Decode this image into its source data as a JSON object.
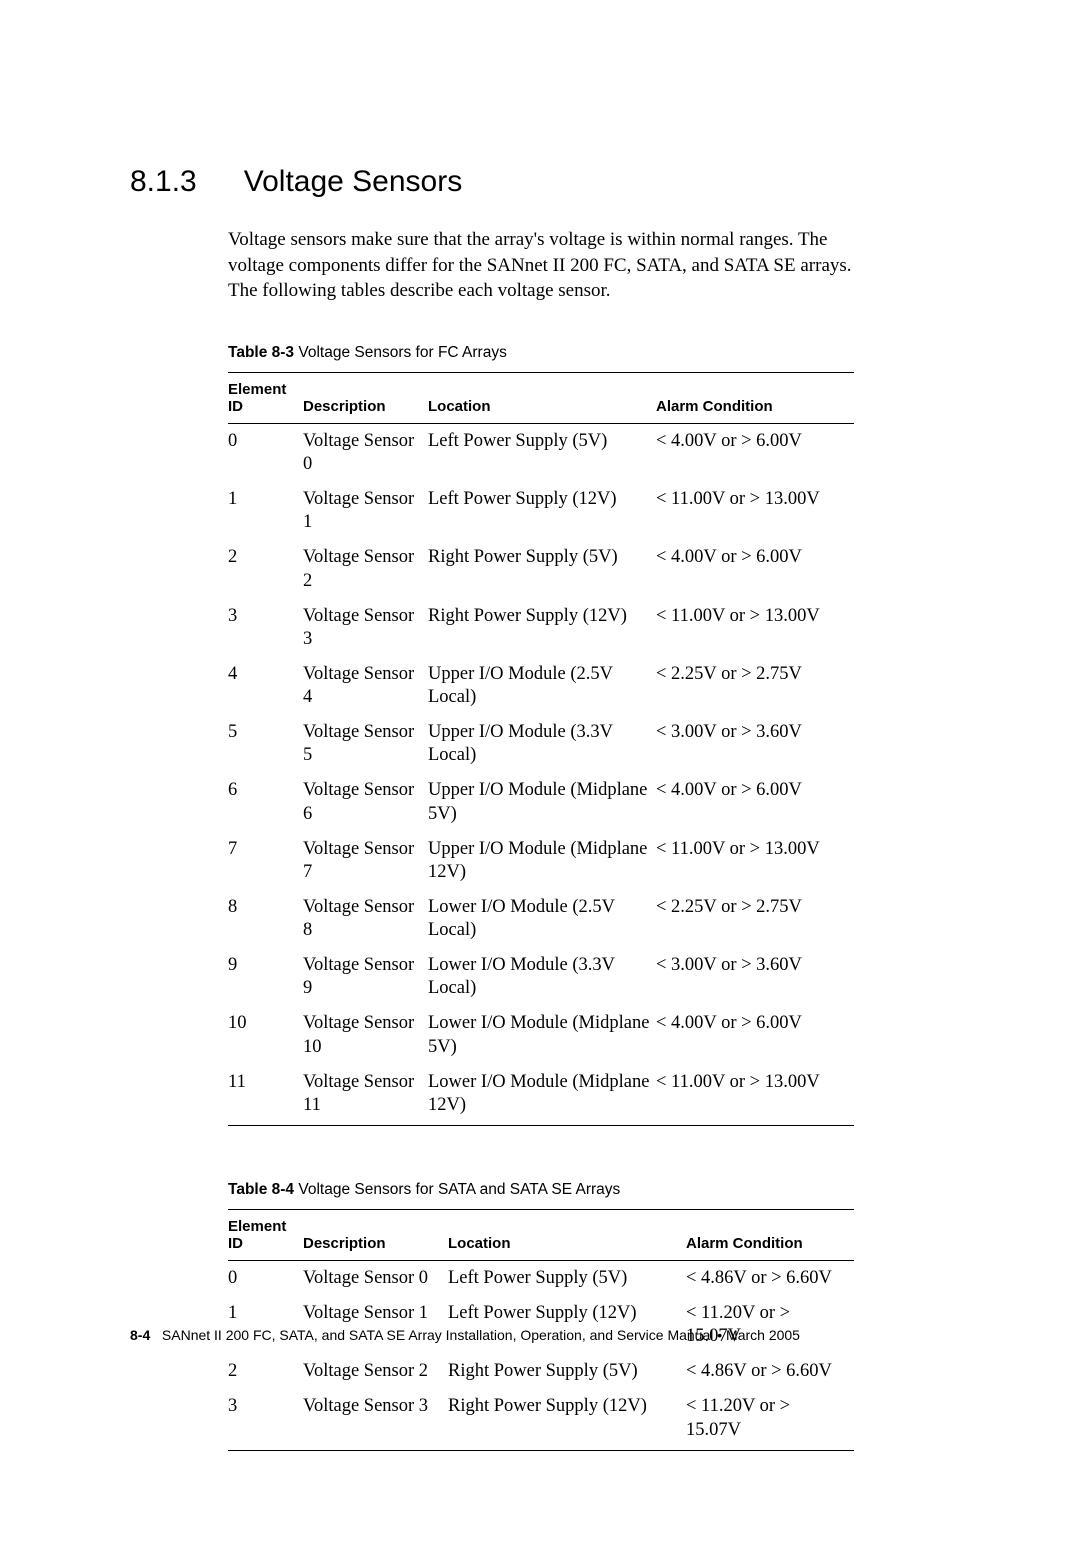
{
  "section": {
    "number": "8.1.3",
    "title": "Voltage Sensors"
  },
  "intro_text": "Voltage sensors make sure that the array's voltage is within normal ranges. The voltage components differ for the SANnet II 200 FC, SATA, and SATA SE arrays. The following tables describe each voltage sensor.",
  "table1": {
    "caption_label": "Table 8-3",
    "caption_text": "Voltage Sensors for FC Arrays",
    "headers": {
      "c0": "Element ID",
      "c1": "Description",
      "c2": "Location",
      "c3": "Alarm Condition"
    },
    "rows": [
      {
        "id": "0",
        "desc": "Voltage Sensor 0",
        "loc": "Left Power Supply (5V)",
        "alarm": "< 4.00V or > 6.00V"
      },
      {
        "id": "1",
        "desc": "Voltage Sensor 1",
        "loc": "Left Power Supply (12V)",
        "alarm": "< 11.00V or > 13.00V"
      },
      {
        "id": "2",
        "desc": "Voltage Sensor 2",
        "loc": "Right Power Supply (5V)",
        "alarm": "< 4.00V or > 6.00V"
      },
      {
        "id": "3",
        "desc": "Voltage Sensor 3",
        "loc": "Right Power Supply (12V)",
        "alarm": "< 11.00V or > 13.00V"
      },
      {
        "id": "4",
        "desc": "Voltage Sensor 4",
        "loc": "Upper I/O Module (2.5V Local)",
        "alarm": "< 2.25V or > 2.75V"
      },
      {
        "id": "5",
        "desc": "Voltage Sensor 5",
        "loc": "Upper I/O Module (3.3V Local)",
        "alarm": "< 3.00V or > 3.60V"
      },
      {
        "id": "6",
        "desc": "Voltage Sensor 6",
        "loc": "Upper I/O Module (Midplane 5V)",
        "alarm": "< 4.00V or > 6.00V"
      },
      {
        "id": "7",
        "desc": "Voltage Sensor 7",
        "loc": "Upper I/O Module (Midplane 12V)",
        "alarm": "< 11.00V or > 13.00V"
      },
      {
        "id": "8",
        "desc": "Voltage Sensor 8",
        "loc": "Lower I/O Module (2.5V Local)",
        "alarm": "< 2.25V or > 2.75V"
      },
      {
        "id": "9",
        "desc": "Voltage Sensor 9",
        "loc": "Lower I/O Module (3.3V Local)",
        "alarm": "< 3.00V or > 3.60V"
      },
      {
        "id": "10",
        "desc": "Voltage Sensor 10",
        "loc": "Lower I/O Module (Midplane 5V)",
        "alarm": "< 4.00V or > 6.00V"
      },
      {
        "id": "11",
        "desc": "Voltage Sensor 11",
        "loc": "Lower I/O Module (Midplane 12V)",
        "alarm": "< 11.00V or > 13.00V"
      }
    ]
  },
  "table2": {
    "caption_label": "Table 8-4",
    "caption_text": "Voltage Sensors for SATA and SATA SE Arrays",
    "headers": {
      "c0": "Element ID",
      "c1": "Description",
      "c2": "Location",
      "c3": "Alarm Condition"
    },
    "rows": [
      {
        "id": "0",
        "desc": "Voltage Sensor 0",
        "loc": "Left Power Supply (5V)",
        "alarm": "< 4.86V or > 6.60V"
      },
      {
        "id": "1",
        "desc": "Voltage Sensor 1",
        "loc": "Left Power Supply (12V)",
        "alarm": "< 11.20V or > 15.07V"
      },
      {
        "id": "2",
        "desc": "Voltage Sensor 2",
        "loc": "Right Power Supply (5V)",
        "alarm": "< 4.86V or > 6.60V"
      },
      {
        "id": "3",
        "desc": "Voltage Sensor 3",
        "loc": "Right Power Supply (12V)",
        "alarm": "< 11.20V or > 15.07V"
      }
    ]
  },
  "footer": {
    "page_num": "8-4",
    "text": "SANnet II 200 FC, SATA, and SATA SE Array Installation, Operation, and Service Manual  •  March 2005"
  }
}
